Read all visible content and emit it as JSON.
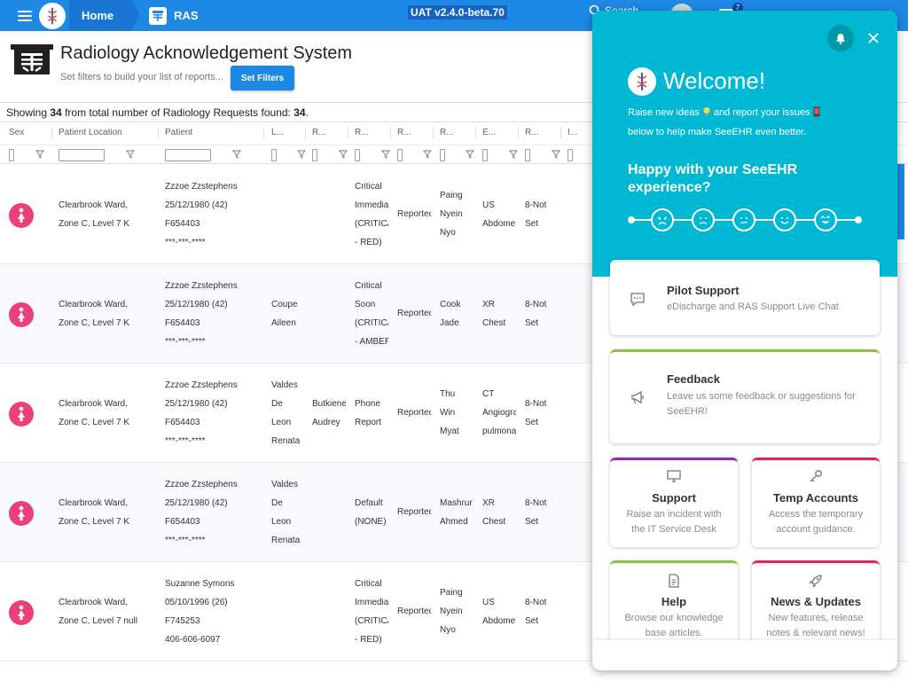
{
  "nav": {
    "home_label": "Home",
    "app_label": "RAS",
    "version": "UAT v2.4.0-beta.70",
    "search_label": "Search",
    "badge_count": "7"
  },
  "header": {
    "title": "Radiology Acknowledgement System",
    "subtitle": "Set filters to build your list of reports...",
    "set_filters_label": "Set Filters"
  },
  "summary": {
    "prefix": "Showing ",
    "shown": "34",
    "middle": " from total number of Radiology Requests found: ",
    "total": "34",
    "suffix": "."
  },
  "columns": [
    "Sex",
    "Patient Location",
    "Patient",
    "L...",
    "R...",
    "R...",
    "R...",
    "R...",
    "E...",
    "R...",
    "I..."
  ],
  "rows": [
    {
      "location": [
        "Clearbrook Ward,",
        "Zone C, Level 7 K"
      ],
      "patient": [
        "Zzzoe Zzstephens",
        "25/12/1980 (42)",
        "F654403",
        "***-***-****"
      ],
      "col_l": [],
      "col_r1": [],
      "priority": [
        "Critical",
        "Immedia",
        "(CRITICA",
        "- RED)"
      ],
      "status": [
        "Reportec"
      ],
      "radiologist": [
        "Paing",
        "Nyein",
        "Nyo"
      ],
      "exam": [
        "US",
        "Abdome"
      ],
      "result": [
        "8-Not",
        "Set"
      ]
    },
    {
      "location": [
        "Clearbrook Ward,",
        "Zone C, Level 7 K"
      ],
      "patient": [
        "Zzzoe Zzstephens",
        "25/12/1980 (42)",
        "F654403",
        "***-***-****"
      ],
      "col_l": [
        "Coupe",
        "Aileen"
      ],
      "col_r1": [],
      "priority": [
        "Critical",
        "Soon",
        "(CRITICA",
        "- AMBER"
      ],
      "status": [
        "Reportec"
      ],
      "radiologist": [
        "Cook",
        "Jade"
      ],
      "exam": [
        "XR",
        "Chest"
      ],
      "result": [
        "8-Not",
        "Set"
      ]
    },
    {
      "location": [
        "Clearbrook Ward,",
        "Zone C, Level 7 K"
      ],
      "patient": [
        "Zzzoe Zzstephens",
        "25/12/1980 (42)",
        "F654403",
        "***-***-****"
      ],
      "col_l": [
        "Valdes",
        "De",
        "Leon",
        "Renata"
      ],
      "col_r1": [
        "Butkiene",
        "Audrey"
      ],
      "priority": [
        "Phone",
        "Report"
      ],
      "status": [
        "Reportec"
      ],
      "radiologist": [
        "Thu",
        "Win",
        "Myat"
      ],
      "exam": [
        "CT",
        "Angiogra",
        "pulmona"
      ],
      "result": [
        "8-Not",
        "Set"
      ]
    },
    {
      "location": [
        "Clearbrook Ward,",
        "Zone C, Level 7 K"
      ],
      "patient": [
        "Zzzoe Zzstephens",
        "25/12/1980 (42)",
        "F654403",
        "***-***-****"
      ],
      "col_l": [
        "Valdes",
        "De",
        "Leon",
        "Renata"
      ],
      "col_r1": [],
      "priority": [
        "Default",
        "(NONE)"
      ],
      "status": [
        "Reportec"
      ],
      "radiologist": [
        "Mashrur",
        "Ahmed"
      ],
      "exam": [
        "XR",
        "Chest"
      ],
      "result": [
        "8-Not",
        "Set"
      ]
    },
    {
      "location": [
        "Clearbrook Ward,",
        "Zone C, Level 7 null"
      ],
      "patient": [
        "Suzanne Symons",
        "05/10/1996 (26)",
        "F745253",
        "406-606-6097"
      ],
      "col_l": [],
      "col_r1": [],
      "priority": [
        "Critical",
        "Immedia",
        "(CRITICA",
        "- RED)"
      ],
      "status": [
        "Reportec"
      ],
      "radiologist": [
        "Paing",
        "Nyein",
        "Nyo"
      ],
      "exam": [
        "US",
        "Abdome"
      ],
      "result": [
        "8-Not",
        "Set"
      ]
    }
  ],
  "panel": {
    "welcome_title": "Welcome!",
    "welcome_line1_a": "Raise new ideas ",
    "welcome_line1_b": " and report your issues ",
    "welcome_line2": "below to help make SeeEHR even better.",
    "happy_text": "Happy with your SeeEHR experience?",
    "pilot": {
      "title": "Pilot Support",
      "desc": "eDischarge and RAS Support Live Chat",
      "accent": "#eeeeee"
    },
    "feedback": {
      "title": "Feedback",
      "desc": "Leave us some feedback or suggestions for SeeEHR!",
      "accent": "#8bc34a"
    },
    "support": {
      "title": "Support",
      "desc": "Raise an incident with the IT Service Desk",
      "accent": "#9c27b0"
    },
    "temp": {
      "title": "Temp Accounts",
      "desc": "Access the temporary account guidance.",
      "accent": "#e91e63"
    },
    "help": {
      "title": "Help",
      "desc": "Browse our knowledge base articles.",
      "accent": "#8bc34a"
    },
    "news": {
      "title": "News & Updates",
      "desc": "New features, release notes & relevant news!",
      "accent": "#e91e63"
    }
  }
}
